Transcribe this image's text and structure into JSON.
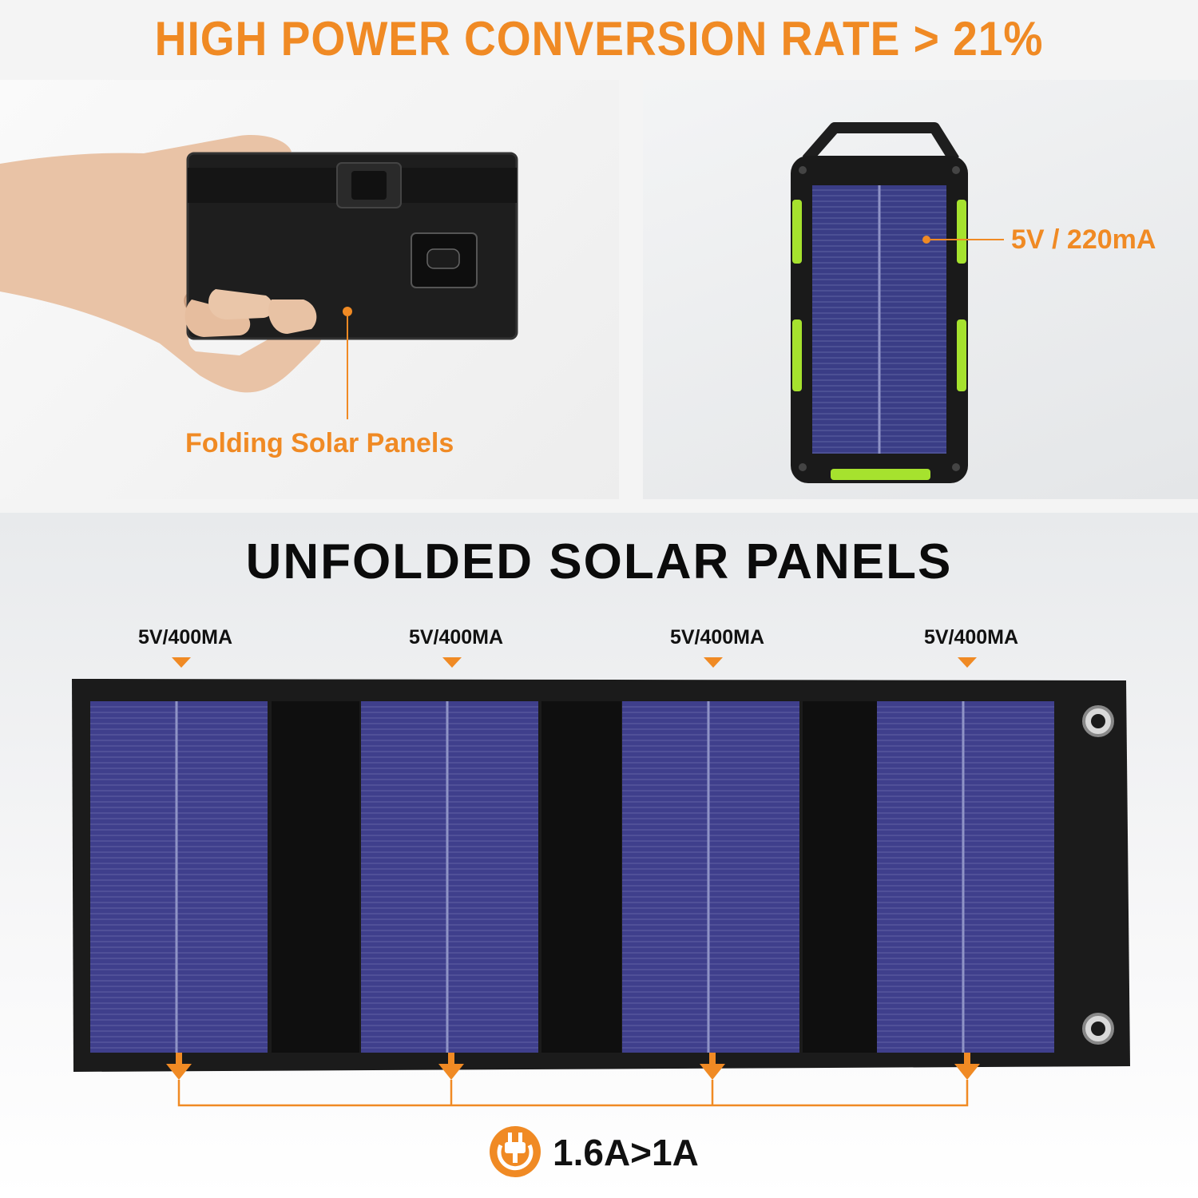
{
  "headline": "HIGH POWER CONVERSION RATE > 21%",
  "folded": {
    "caption": "Folding Solar Panels"
  },
  "power_bank": {
    "caption": "5V / 220mA"
  },
  "unfolded": {
    "title": "UNFOLDED SOLAR PANELS",
    "panel_ratings": [
      "5V/400MA",
      "5V/400MA",
      "5V/400MA",
      "5V/400MA"
    ]
  },
  "output": {
    "text": "1.6A>1A"
  },
  "colors": {
    "accent": "#f08a24",
    "cell": "#3f3f8c",
    "fabric": "#1b1b1b",
    "power_bank_trim": "#a6e22e"
  },
  "icons": [
    "plug-icon",
    "arrow-down-icon",
    "grommet-icon"
  ]
}
